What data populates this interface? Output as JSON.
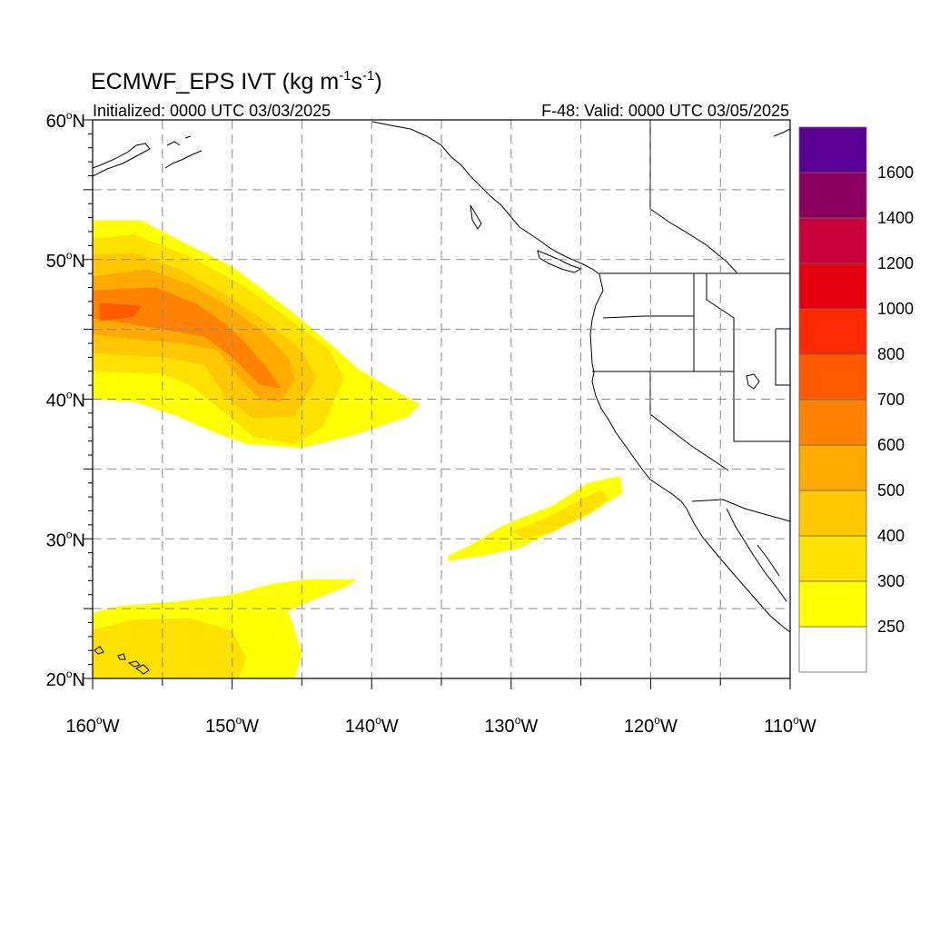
{
  "header": {
    "title_prefix": "ECMWF_EPS IVT (kg m",
    "title_sup1": "-1",
    "title_mid": "s",
    "title_sup2": "-1",
    "title_suffix": ")",
    "initialized": "Initialized: 0000 UTC 03/03/2025",
    "valid": "F-48: Valid: 0000 UTC 03/05/2025"
  },
  "axes": {
    "lon_range": [
      -160,
      -110
    ],
    "lat_range": [
      20,
      60
    ],
    "x_ticks": [
      {
        "value": -160,
        "num": "160",
        "hemi": "W"
      },
      {
        "value": -150,
        "num": "150",
        "hemi": "W"
      },
      {
        "value": -140,
        "num": "140",
        "hemi": "W"
      },
      {
        "value": -130,
        "num": "130",
        "hemi": "W"
      },
      {
        "value": -120,
        "num": "120",
        "hemi": "W"
      },
      {
        "value": -110,
        "num": "110",
        "hemi": "W"
      }
    ],
    "y_ticks": [
      {
        "value": 60,
        "num": "60",
        "hemi": "N"
      },
      {
        "value": 50,
        "num": "50",
        "hemi": "N"
      },
      {
        "value": 40,
        "num": "40",
        "hemi": "N"
      },
      {
        "value": 30,
        "num": "30",
        "hemi": "N"
      },
      {
        "value": 20,
        "num": "20",
        "hemi": "N"
      }
    ],
    "grid_lons": [
      -155,
      -150,
      -145,
      -140,
      -135,
      -130,
      -125,
      -120,
      -115
    ],
    "grid_lats": [
      55,
      50,
      45,
      40,
      35,
      30,
      25
    ],
    "grid_style": "dashed"
  },
  "colorbar": {
    "labels": [
      "250",
      "300",
      "400",
      "500",
      "600",
      "700",
      "800",
      "1000",
      "1200",
      "1400",
      "1600"
    ],
    "colors": [
      "#ffffff",
      "#ffff00",
      "#ffe100",
      "#ffc800",
      "#ffaa00",
      "#ff8200",
      "#ff5a00",
      "#ff2800",
      "#e6000f",
      "#c8003c",
      "#8c005f",
      "#5a0096"
    ]
  },
  "chart_data": {
    "type": "heatmap",
    "variable": "IVT",
    "units": "kg m-1 s-1",
    "levels": [
      250,
      300,
      400,
      500,
      600,
      700,
      800,
      1000,
      1200,
      1400,
      1600
    ],
    "regions": [
      {
        "id": "north-pacific-plume",
        "bands": [
          {
            "level": 250,
            "polygon": [
              [
                -160,
                52.8
              ],
              [
                -156.5,
                52.8
              ],
              [
                -154,
                51.5
              ],
              [
                -150,
                49.5
              ],
              [
                -146,
                46.5
              ],
              [
                -143,
                44
              ],
              [
                -141,
                42.2
              ],
              [
                -139,
                41
              ],
              [
                -136.5,
                39.6
              ],
              [
                -137.5,
                38.7
              ],
              [
                -141,
                37.5
              ],
              [
                -145,
                36.5
              ],
              [
                -149,
                36.8
              ],
              [
                -151,
                37.5
              ],
              [
                -154,
                38.8
              ],
              [
                -157,
                39.8
              ],
              [
                -160,
                40
              ]
            ]
          },
          {
            "level": 300,
            "polygon": [
              [
                -160,
                51.5
              ],
              [
                -157,
                51.8
              ],
              [
                -153,
                50.2
              ],
              [
                -149,
                48
              ],
              [
                -146,
                45.8
              ],
              [
                -143,
                43.5
              ],
              [
                -142,
                41.5
              ],
              [
                -143.5,
                38
              ],
              [
                -145.5,
                36.8
              ],
              [
                -148.5,
                37.3
              ],
              [
                -150.5,
                39
              ],
              [
                -153,
                41
              ],
              [
                -155,
                41.8
              ],
              [
                -160,
                42
              ]
            ]
          },
          {
            "level": 400,
            "polygon": [
              [
                -160,
                50.3
              ],
              [
                -157,
                50.5
              ],
              [
                -154,
                49.4
              ],
              [
                -150.5,
                47.5
              ],
              [
                -147.5,
                45.5
              ],
              [
                -145,
                43.5
              ],
              [
                -144,
                41.5
              ],
              [
                -145.5,
                38.8
              ],
              [
                -148.5,
                38.6
              ],
              [
                -150.5,
                40.2
              ],
              [
                -152,
                42.5
              ],
              [
                -155,
                43
              ],
              [
                -160,
                43.3
              ]
            ]
          },
          {
            "level": 500,
            "polygon": [
              [
                -160,
                48.8
              ],
              [
                -156,
                49.3
              ],
              [
                -153,
                48.2
              ],
              [
                -150.5,
                46.8
              ],
              [
                -148,
                45
              ],
              [
                -146,
                43
              ],
              [
                -145.5,
                41.5
              ],
              [
                -146.5,
                39.8
              ],
              [
                -148,
                40
              ],
              [
                -149.5,
                41.5
              ],
              [
                -151,
                43.5
              ],
              [
                -153.5,
                44
              ],
              [
                -156,
                44.2
              ],
              [
                -160,
                44.6
              ]
            ]
          },
          {
            "level": 600,
            "polygon": [
              [
                -160,
                47.8
              ],
              [
                -155.5,
                48
              ],
              [
                -152.5,
                46.8
              ],
              [
                -150.5,
                45.4
              ],
              [
                -149,
                44
              ],
              [
                -147.5,
                42.2
              ],
              [
                -146.5,
                40.8
              ],
              [
                -148,
                41
              ],
              [
                -150,
                43
              ],
              [
                -152,
                44.5
              ],
              [
                -155,
                45
              ],
              [
                -160,
                45.8
              ]
            ]
          },
          {
            "level": 700,
            "polygon": [
              [
                -159.5,
                46.9
              ],
              [
                -156.5,
                46.7
              ],
              [
                -157,
                45.9
              ],
              [
                -159.5,
                45.6
              ]
            ]
          }
        ]
      },
      {
        "id": "subtropical-filament",
        "bands": [
          {
            "level": 250,
            "polygon": [
              [
                -134.5,
                28.8
              ],
              [
                -133,
                29.5
              ],
              [
                -130.5,
                31
              ],
              [
                -127,
                32.4
              ],
              [
                -124.5,
                34
              ],
              [
                -122.2,
                34.5
              ],
              [
                -122,
                33.3
              ],
              [
                -124.5,
                31.7
              ],
              [
                -127,
                30.5
              ],
              [
                -129.5,
                29.3
              ],
              [
                -132,
                28.8
              ],
              [
                -134.5,
                28.4
              ]
            ]
          },
          {
            "level": 300,
            "polygon": [
              [
                -130,
                30.5
              ],
              [
                -127.5,
                31.5
              ],
              [
                -125,
                32.8
              ],
              [
                -123.5,
                33.5
              ],
              [
                -123,
                32.8
              ],
              [
                -124.5,
                31.8
              ],
              [
                -127,
                30.5
              ],
              [
                -129,
                30
              ]
            ]
          }
        ]
      },
      {
        "id": "hawaii-band",
        "bands": [
          {
            "level": 250,
            "polygon": [
              [
                -160,
                24.7
              ],
              [
                -158,
                25.2
              ],
              [
                -154,
                25.5
              ],
              [
                -150,
                26
              ],
              [
                -147,
                26.8
              ],
              [
                -144.5,
                27.1
              ],
              [
                -141,
                27.1
              ],
              [
                -142,
                26.5
              ],
              [
                -144.5,
                25.5
              ],
              [
                -146,
                24.8
              ],
              [
                -145.5,
                23.5
              ],
              [
                -145,
                21.8
              ],
              [
                -145.5,
                20
              ],
              [
                -160,
                20
              ]
            ]
          },
          {
            "level": 300,
            "polygon": [
              [
                -160,
                23.5
              ],
              [
                -157,
                24.2
              ],
              [
                -153,
                24.3
              ],
              [
                -150,
                23.4
              ],
              [
                -149,
                21.5
              ],
              [
                -149.5,
                20
              ],
              [
                -160,
                20
              ]
            ]
          }
        ]
      }
    ]
  }
}
